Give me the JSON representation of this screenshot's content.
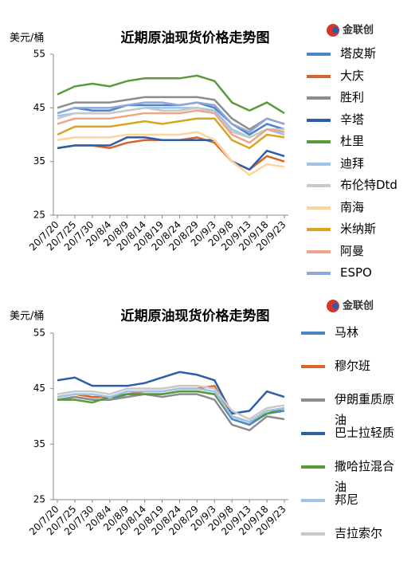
{
  "chart_data": [
    {
      "type": "line",
      "title": "近期原油现货价格走势图",
      "y_label": "美元/桶",
      "logo": "金联创",
      "categories": [
        "20/7/20",
        "20/7/25",
        "20/7/30",
        "20/8/4",
        "20/8/9",
        "20/8/14",
        "20/8/19",
        "20/8/24",
        "20/8/29",
        "20/9/3",
        "20/9/8",
        "20/9/13",
        "20/9/18",
        "20/9/23"
      ],
      "ylim": [
        25,
        55
      ],
      "yticks": [
        25,
        35,
        45,
        55
      ],
      "series": [
        {
          "name": "塔皮斯",
          "color": "#4a86c5",
          "values": [
            44,
            45,
            44.5,
            44.5,
            45.5,
            45.5,
            45.5,
            45.5,
            46,
            45,
            42,
            40,
            42,
            41
          ]
        },
        {
          "name": "大庆",
          "color": "#d9652b",
          "values": [
            37.5,
            38,
            38,
            37.5,
            38.5,
            39,
            39,
            39,
            39.5,
            38.5,
            35,
            33.5,
            36,
            35
          ]
        },
        {
          "name": "胜利",
          "color": "#8c8c8c",
          "values": [
            45,
            46,
            46,
            46,
            46.5,
            47,
            47,
            47,
            47,
            46.5,
            43,
            41,
            43,
            42
          ]
        },
        {
          "name": "辛塔",
          "color": "#2f5ca8",
          "values": [
            37.5,
            38,
            38,
            38,
            39.5,
            39.5,
            39,
            39,
            39,
            39,
            35,
            33.5,
            37,
            36
          ]
        },
        {
          "name": "杜里",
          "color": "#5a9a3a",
          "values": [
            47.5,
            49,
            49.5,
            49,
            50,
            50.5,
            50.5,
            50.5,
            51,
            50,
            46,
            44.5,
            46,
            44
          ]
        },
        {
          "name": "迪拜",
          "color": "#9dc3e6",
          "values": [
            43.5,
            44,
            44,
            44,
            44.5,
            45,
            45,
            45,
            45,
            44.5,
            41,
            39.5,
            41,
            40
          ]
        },
        {
          "name": "布伦特Dtd",
          "color": "#c8c8c8",
          "values": [
            43,
            44,
            44,
            44,
            44.5,
            45,
            44.5,
            44.5,
            45,
            44,
            40.5,
            39.5,
            41,
            41
          ]
        },
        {
          "name": "南海",
          "color": "#fdd59a",
          "values": [
            39,
            39.5,
            39.5,
            39.5,
            40,
            40,
            40,
            40,
            40.5,
            39,
            35,
            32.5,
            34.5,
            34
          ]
        },
        {
          "name": "米纳斯",
          "color": "#d9a520",
          "values": [
            40,
            41.5,
            41.5,
            41.5,
            42,
            42.5,
            42,
            42.5,
            43,
            43,
            39,
            37.5,
            40,
            39.5
          ]
        },
        {
          "name": "阿曼",
          "color": "#eda58a",
          "values": [
            42,
            43,
            43,
            43,
            43.5,
            44,
            44,
            44,
            44.5,
            44,
            40,
            38.5,
            41,
            40.5
          ]
        },
        {
          "name": "ESPO",
          "color": "#8fa6d8",
          "values": [
            44,
            45,
            45,
            45,
            45.5,
            46,
            46,
            45.5,
            46,
            45.5,
            42,
            40.5,
            43,
            42
          ]
        }
      ]
    },
    {
      "type": "line",
      "title": "近期原油现货价格走势图",
      "y_label": "美元/桶",
      "logo": "金联创",
      "categories": [
        "20/7/20",
        "20/7/25",
        "20/7/30",
        "20/8/4",
        "20/8/9",
        "20/8/14",
        "20/8/19",
        "20/8/24",
        "20/8/29",
        "20/9/3",
        "20/9/8",
        "20/9/13",
        "20/9/18",
        "20/9/23"
      ],
      "ylim": [
        25,
        55
      ],
      "yticks": [
        25,
        35,
        45,
        55
      ],
      "series": [
        {
          "name": "马林",
          "color": "#4a86c5",
          "values": [
            43,
            43.5,
            43,
            43,
            44,
            44,
            44,
            44.5,
            44.5,
            44,
            39.5,
            38.5,
            40.5,
            41
          ]
        },
        {
          "name": "穆尔班",
          "color": "#d9652b",
          "values": [
            43.5,
            44,
            43.5,
            43.5,
            44,
            44.5,
            44.5,
            45,
            45,
            45.5,
            40,
            39,
            41,
            41.5
          ]
        },
        {
          "name": "伊朗重质原油",
          "color": "#8c8c8c",
          "values": [
            43,
            43.5,
            43,
            43,
            43.5,
            44,
            43.5,
            44,
            44,
            43,
            38.5,
            37.5,
            40,
            39.5
          ]
        },
        {
          "name": "巴士拉轻质",
          "color": "#2f5ca8",
          "values": [
            46.5,
            47,
            45.5,
            45.5,
            45.5,
            46,
            47,
            48,
            47.5,
            46.5,
            40.5,
            41,
            44.5,
            43.5
          ]
        },
        {
          "name": "撒哈拉混合油",
          "color": "#5a9a3a",
          "values": [
            43,
            43,
            42.5,
            43.5,
            44,
            44,
            44,
            44.5,
            44.5,
            44,
            40,
            39,
            40.5,
            41.5
          ]
        },
        {
          "name": "邦尼",
          "color": "#9dc3e6",
          "values": [
            43.5,
            44,
            44,
            43.5,
            44.5,
            44.5,
            44.5,
            45,
            45,
            44.5,
            40,
            39,
            41,
            41.5
          ]
        },
        {
          "name": "吉拉索尔",
          "color": "#c8c8c8",
          "values": [
            44,
            44.5,
            44.5,
            44,
            45,
            45,
            45,
            45.5,
            45.5,
            45,
            41,
            39.5,
            41.5,
            42
          ]
        }
      ]
    }
  ]
}
